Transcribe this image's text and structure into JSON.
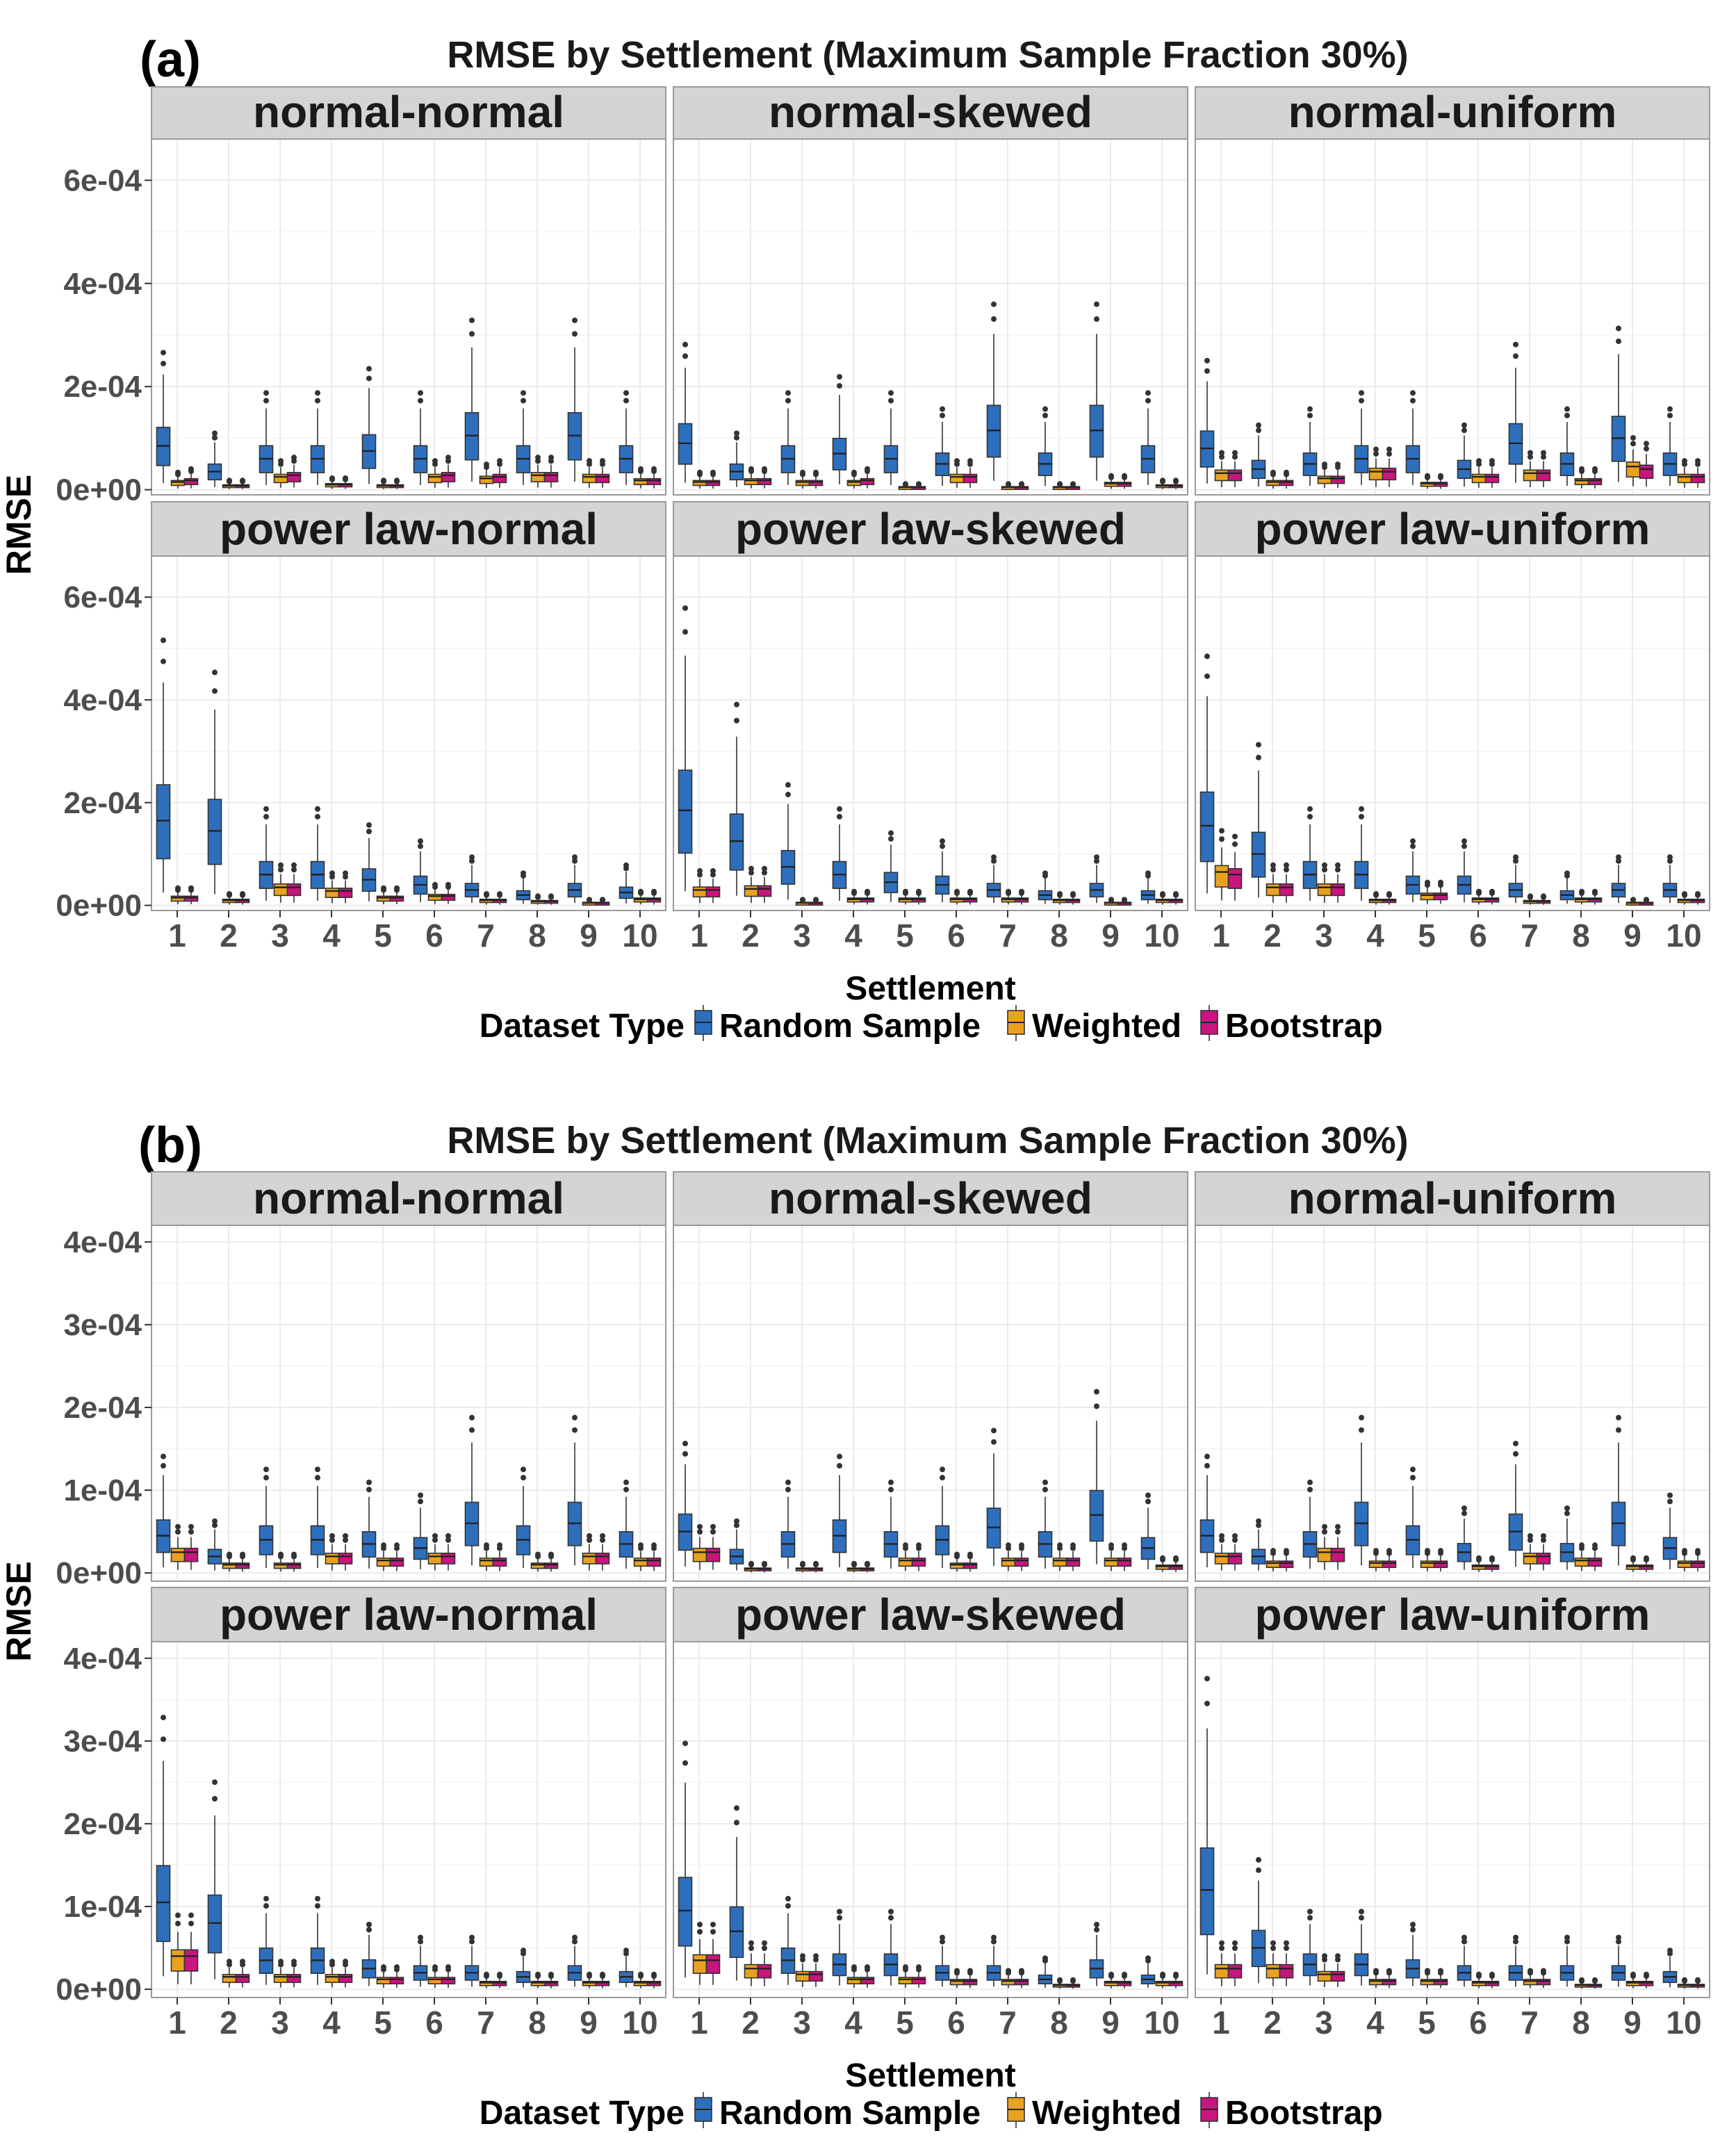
{
  "colors": {
    "random": "#2E6FBD",
    "weighted": "#E9A21F",
    "bootstrap": "#C8157F",
    "strip": "#D4D4D4",
    "panel_border": "#9A9A9A",
    "grid": "#EBEBEB",
    "axis_text": "#4D4D4D",
    "title_text": "#1A1A1A"
  },
  "chart_data": [
    {
      "type": "box",
      "label": "(a)",
      "title": "RMSE by Settlement (Maximum Sample Fraction 30%)",
      "xlabel": "Settlement",
      "ylabel": "RMSE",
      "ylim": [
        -1e-05,
        0.00068
      ],
      "ytick_values": [
        0,
        0.0002,
        0.0004,
        0.0006
      ],
      "ytick_labels": [
        "0e+00",
        "2e-04",
        "4e-04",
        "6e-04"
      ],
      "categories": [
        "1",
        "2",
        "3",
        "4",
        "5",
        "6",
        "7",
        "8",
        "9",
        "10"
      ],
      "grid": true,
      "legend": {
        "position": "bottom",
        "title": "Dataset Type",
        "items": [
          "Random Sample",
          "Weighted",
          "Bootstrap"
        ]
      },
      "panels": [
        {
          "title": "normal-normal",
          "random_median": [
            8.5e-05,
            3.5e-05,
            6e-05,
            6e-05,
            7.5e-05,
            6e-05,
            0.000105,
            6e-05,
            0.000105,
            6e-05
          ],
          "weighted_median": [
            1.5e-05,
            8e-06,
            2.5e-05,
            1e-05,
            8e-06,
            2.5e-05,
            2.2e-05,
            2.8e-05,
            2.5e-05,
            1.8e-05
          ],
          "bootstrap_median": [
            1.8e-05,
            8e-06,
            2.8e-05,
            1e-05,
            8e-06,
            2.8e-05,
            2.5e-05,
            2.8e-05,
            2.5e-05,
            1.8e-05
          ]
        },
        {
          "title": "normal-skewed",
          "random_median": [
            9e-05,
            3.5e-05,
            6e-05,
            7e-05,
            6e-05,
            5e-05,
            0.000115,
            5e-05,
            0.000115,
            6e-05
          ],
          "weighted_median": [
            1.5e-05,
            1.8e-05,
            1.5e-05,
            1.5e-05,
            5e-06,
            2.5e-05,
            5e-06,
            5e-06,
            1.2e-05,
            8e-06
          ],
          "bootstrap_median": [
            1.5e-05,
            1.8e-05,
            1.5e-05,
            1.8e-05,
            5e-06,
            2.5e-05,
            5e-06,
            5e-06,
            1.2e-05,
            8e-06
          ]
        },
        {
          "title": "normal-uniform",
          "random_median": [
            8e-05,
            4e-05,
            5e-05,
            6e-05,
            6e-05,
            4e-05,
            9e-05,
            5e-05,
            0.0001,
            5e-05
          ],
          "weighted_median": [
            3.2e-05,
            1.5e-05,
            2.2e-05,
            3.5e-05,
            1.2e-05,
            2.5e-05,
            3.2e-05,
            1.8e-05,
            4.5e-05,
            2.5e-05
          ],
          "bootstrap_median": [
            3.2e-05,
            1.5e-05,
            2.2e-05,
            3.5e-05,
            1.2e-05,
            2.5e-05,
            3.2e-05,
            1.8e-05,
            4e-05,
            2.5e-05
          ]
        },
        {
          "title": "power law-normal",
          "random_median": [
            0.000165,
            0.000145,
            6e-05,
            6e-05,
            5e-05,
            4e-05,
            3e-05,
            2e-05,
            3e-05,
            2.5e-05
          ],
          "weighted_median": [
            1.5e-05,
            1e-05,
            3.5e-05,
            2.8e-05,
            1.5e-05,
            1.8e-05,
            1e-05,
            8e-06,
            5e-06,
            1.2e-05
          ],
          "bootstrap_median": [
            1.5e-05,
            1e-05,
            3.5e-05,
            2.8e-05,
            1.5e-05,
            1.8e-05,
            1e-05,
            8e-06,
            5e-06,
            1.2e-05
          ]
        },
        {
          "title": "power law-skewed",
          "random_median": [
            0.000185,
            0.000125,
            7.5e-05,
            6e-05,
            4.5e-05,
            4e-05,
            3e-05,
            2e-05,
            3e-05,
            2e-05
          ],
          "weighted_median": [
            3e-05,
            3.2e-05,
            5e-06,
            1.2e-05,
            1.2e-05,
            1.2e-05,
            1.2e-05,
            1e-05,
            5e-06,
            1e-05
          ],
          "bootstrap_median": [
            3e-05,
            3.2e-05,
            5e-06,
            1.2e-05,
            1.2e-05,
            1.2e-05,
            1.2e-05,
            1e-05,
            5e-06,
            1e-05
          ]
        },
        {
          "title": "power law-uniform",
          "random_median": [
            0.000155,
            0.0001,
            6e-05,
            6e-05,
            4e-05,
            4e-05,
            3e-05,
            2e-05,
            3e-05,
            3e-05
          ],
          "weighted_median": [
            6.5e-05,
            3.5e-05,
            3.5e-05,
            1e-05,
            2e-05,
            1.2e-05,
            8e-06,
            1.2e-05,
            5e-06,
            1e-05
          ],
          "bootstrap_median": [
            6e-05,
            3.5e-05,
            3.5e-05,
            1e-05,
            2e-05,
            1.2e-05,
            8e-06,
            1.2e-05,
            5e-06,
            1e-05
          ]
        }
      ]
    },
    {
      "type": "box",
      "label": "(b)",
      "title": "RMSE by Settlement (Maximum Sample Fraction 30%)",
      "xlabel": "Settlement",
      "ylabel": "RMSE",
      "ylim": [
        -1e-05,
        0.00042
      ],
      "ytick_values": [
        0,
        0.0001,
        0.0002,
        0.0003,
        0.0004
      ],
      "ytick_labels": [
        "0e+00",
        "1e-04",
        "2e-04",
        "3e-04",
        "4e-04"
      ],
      "categories": [
        "1",
        "2",
        "3",
        "4",
        "5",
        "6",
        "7",
        "8",
        "9",
        "10"
      ],
      "grid": true,
      "legend": {
        "position": "bottom",
        "title": "Dataset Type",
        "items": [
          "Random Sample",
          "Weighted",
          "Bootstrap"
        ]
      },
      "panels": [
        {
          "title": "normal-normal",
          "random_median": [
            4.5e-05,
            2e-05,
            4e-05,
            4e-05,
            3.5e-05,
            3e-05,
            6e-05,
            4e-05,
            6e-05,
            3.5e-05
          ],
          "weighted_median": [
            2.5e-05,
            1e-05,
            1e-05,
            2e-05,
            1.5e-05,
            2e-05,
            1.5e-05,
            1e-05,
            2e-05,
            1.5e-05
          ],
          "bootstrap_median": [
            2.5e-05,
            1e-05,
            1e-05,
            2e-05,
            1.5e-05,
            2e-05,
            1.5e-05,
            1e-05,
            2e-05,
            1.5e-05
          ]
        },
        {
          "title": "normal-skewed",
          "random_median": [
            5e-05,
            2e-05,
            3.5e-05,
            4.5e-05,
            3.5e-05,
            4e-05,
            5.5e-05,
            3.5e-05,
            7e-05,
            3e-05
          ],
          "weighted_median": [
            2.5e-05,
            5e-06,
            5e-06,
            5e-06,
            1.5e-05,
            1e-05,
            1.5e-05,
            1.5e-05,
            1.5e-05,
            8e-06
          ],
          "bootstrap_median": [
            2.5e-05,
            5e-06,
            5e-06,
            5e-06,
            1.5e-05,
            1e-05,
            1.5e-05,
            1.5e-05,
            1.5e-05,
            8e-06
          ]
        },
        {
          "title": "normal-uniform",
          "random_median": [
            4.5e-05,
            2e-05,
            3.5e-05,
            6e-05,
            4e-05,
            2.5e-05,
            5e-05,
            2.5e-05,
            6e-05,
            3e-05
          ],
          "weighted_median": [
            2e-05,
            1.2e-05,
            2.5e-05,
            1.2e-05,
            1.2e-05,
            8e-06,
            2e-05,
            1.5e-05,
            8e-06,
            1.2e-05
          ],
          "bootstrap_median": [
            2e-05,
            1.2e-05,
            2.5e-05,
            1.2e-05,
            1.2e-05,
            8e-06,
            2e-05,
            1.5e-05,
            8e-06,
            1.2e-05
          ]
        },
        {
          "title": "power law-normal",
          "random_median": [
            0.000105,
            8e-05,
            3.5e-05,
            3.5e-05,
            2.5e-05,
            2e-05,
            2e-05,
            1.5e-05,
            2e-05,
            1.5e-05
          ],
          "weighted_median": [
            4e-05,
            1.5e-05,
            1.5e-05,
            1.5e-05,
            1.2e-05,
            1.2e-05,
            8e-06,
            8e-06,
            8e-06,
            8e-06
          ],
          "bootstrap_median": [
            4e-05,
            1.5e-05,
            1.5e-05,
            1.5e-05,
            1.2e-05,
            1.2e-05,
            8e-06,
            8e-06,
            8e-06,
            8e-06
          ]
        },
        {
          "title": "power law-skewed",
          "random_median": [
            9.5e-05,
            7e-05,
            3.5e-05,
            3e-05,
            3e-05,
            2e-05,
            2e-05,
            1.2e-05,
            2.5e-05,
            1.2e-05
          ],
          "weighted_median": [
            3.5e-05,
            2.5e-05,
            1.8e-05,
            1.2e-05,
            1.2e-05,
            1e-05,
            1e-05,
            5e-06,
            8e-06,
            8e-06
          ],
          "bootstrap_median": [
            3.5e-05,
            2.5e-05,
            1.8e-05,
            1.2e-05,
            1.2e-05,
            1e-05,
            1e-05,
            5e-06,
            8e-06,
            8e-06
          ]
        },
        {
          "title": "power law-uniform",
          "random_median": [
            0.00012,
            5e-05,
            3e-05,
            3e-05,
            2.5e-05,
            2e-05,
            2e-05,
            2e-05,
            2e-05,
            1.5e-05
          ],
          "weighted_median": [
            2.5e-05,
            2.5e-05,
            1.8e-05,
            1e-05,
            1e-05,
            8e-06,
            1e-05,
            5e-06,
            8e-06,
            5e-06
          ],
          "bootstrap_median": [
            2.5e-05,
            2.5e-05,
            1.8e-05,
            1e-05,
            1e-05,
            8e-06,
            1e-05,
            5e-06,
            8e-06,
            5e-06
          ]
        }
      ]
    }
  ]
}
